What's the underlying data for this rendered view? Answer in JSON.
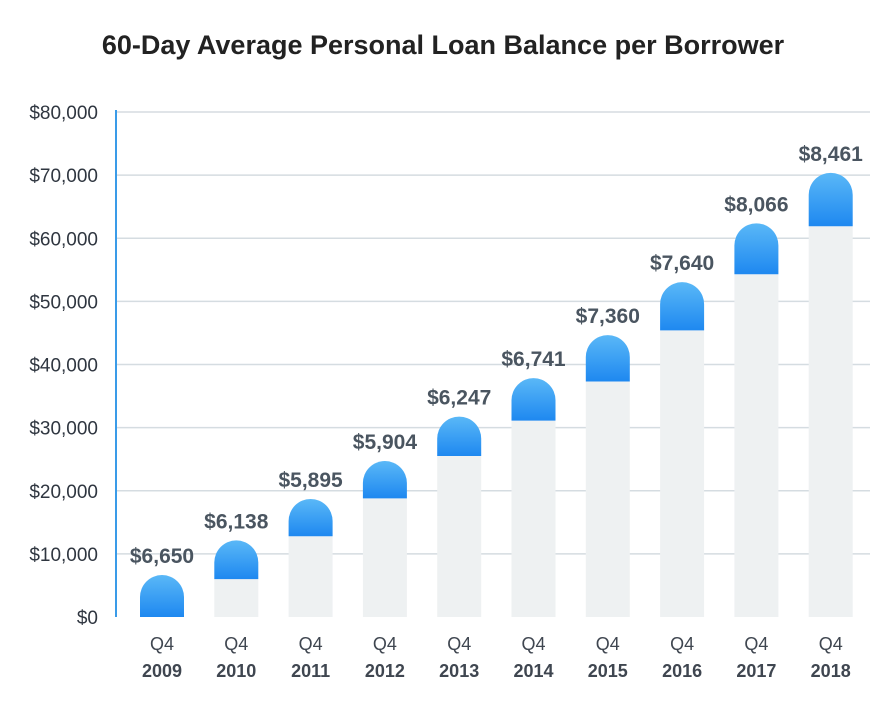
{
  "chart_data": {
    "type": "bar",
    "title": "60-Day Average Personal Loan Balance per Borrower",
    "xlabel": "",
    "ylabel": "",
    "ylim": [
      0,
      80000
    ],
    "y_ticks": [
      "$0",
      "$10,000",
      "$20,000",
      "$30,000",
      "$40,000",
      "$50,000",
      "$60,000",
      "$70,000",
      "$80,000"
    ],
    "grid": true,
    "categories": [
      {
        "quarter": "Q4",
        "year": "2009"
      },
      {
        "quarter": "Q4",
        "year": "2010"
      },
      {
        "quarter": "Q4",
        "year": "2011"
      },
      {
        "quarter": "Q4",
        "year": "2012"
      },
      {
        "quarter": "Q4",
        "year": "2013"
      },
      {
        "quarter": "Q4",
        "year": "2014"
      },
      {
        "quarter": "Q4",
        "year": "2015"
      },
      {
        "quarter": "Q4",
        "year": "2016"
      },
      {
        "quarter": "Q4",
        "year": "2017"
      },
      {
        "quarter": "Q4",
        "year": "2018"
      }
    ],
    "values": [
      6650,
      6138,
      5895,
      5904,
      6247,
      6741,
      7360,
      7640,
      8066,
      8461
    ],
    "base_values": [
      0,
      6000,
      12800,
      18800,
      25500,
      31100,
      37300,
      45400,
      54300,
      61900
    ],
    "labels": [
      "$6,650",
      "$6,138",
      "$5,895",
      "$5,904",
      "$6,247",
      "$6,741",
      "$7,360",
      "$7,640",
      "$8,066",
      "$8,461"
    ],
    "colors": {
      "cap_top": "#5ab8f7",
      "cap_bottom": "#1e88f0",
      "base_bar": "#eef1f2",
      "grid": "#d5dce1",
      "axis": "#3a9be8"
    }
  }
}
